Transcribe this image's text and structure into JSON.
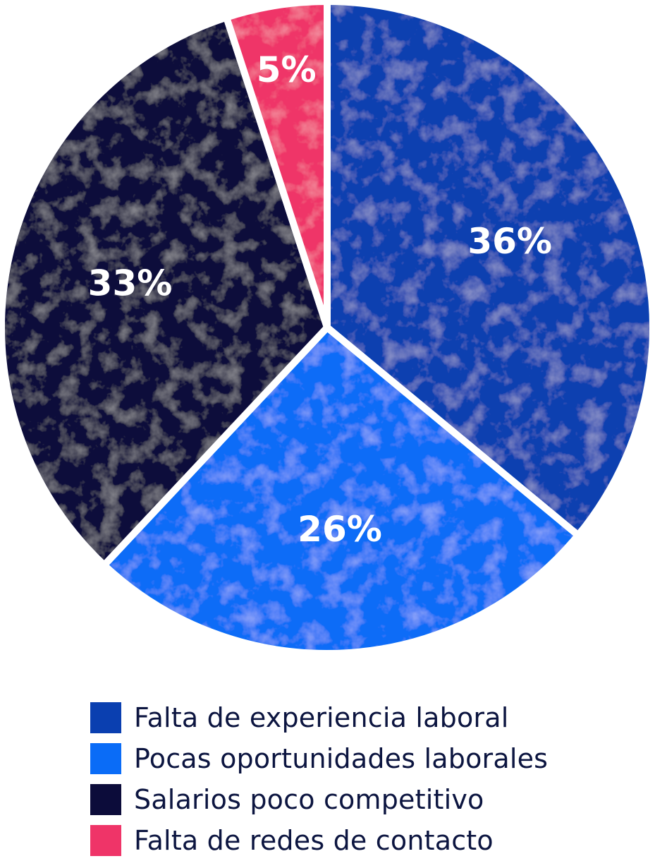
{
  "chart_data": {
    "type": "pie",
    "start_angle_deg": 0,
    "direction": "clockwise",
    "slices": [
      {
        "label": "Falta de experiencia laboral",
        "value": 36,
        "display": "36%",
        "color": "#0a3fb0"
      },
      {
        "label": "Pocas oportunidades laborales",
        "value": 26,
        "display": "26%",
        "color": "#0a6cf7"
      },
      {
        "label": "Salarios poco competitivo",
        "value": 33,
        "display": "33%",
        "color": "#0c0c3a"
      },
      {
        "label": "Falta de redes de contacto",
        "value": 5,
        "display": "5%",
        "color": "#ef3468"
      }
    ],
    "legend_position": "bottom"
  },
  "legend": {
    "items": [
      {
        "label": "Falta de experiencia laboral",
        "color": "#0a3fb0"
      },
      {
        "label": "Pocas oportunidades laborales",
        "color": "#0a6cf7"
      },
      {
        "label": "Salarios poco competitivo",
        "color": "#0c0c3a"
      },
      {
        "label": "Falta de redes de contacto",
        "color": "#ef3468"
      }
    ]
  }
}
